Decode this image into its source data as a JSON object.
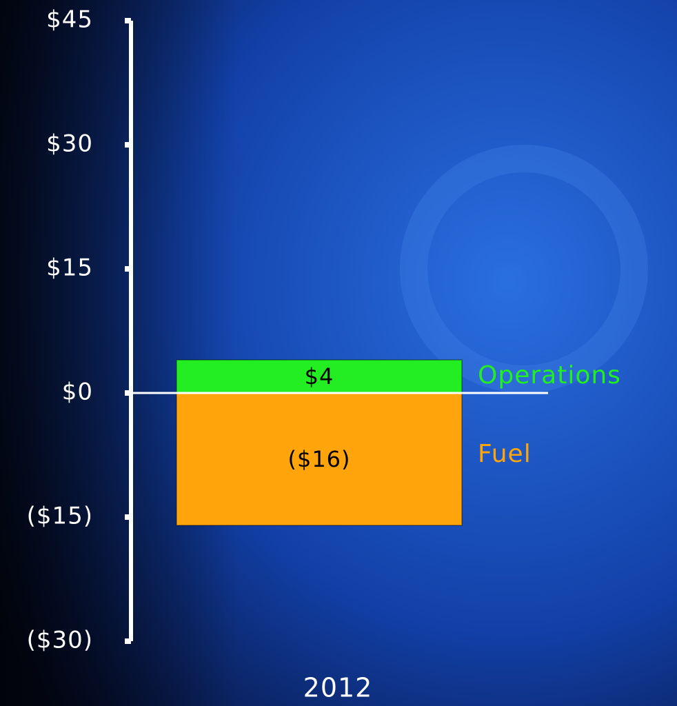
{
  "chart_data": {
    "type": "stacked_bar",
    "categories": [
      "2012"
    ],
    "series": [
      {
        "name": "Operations",
        "color": "#22ee22",
        "values": [
          4
        ],
        "value_labels": [
          "$4"
        ]
      },
      {
        "name": "Fuel",
        "color": "#ffa40a",
        "values": [
          -16
        ],
        "value_labels": [
          "($16)"
        ]
      }
    ],
    "ylim": [
      -30,
      45
    ],
    "yticks": [
      {
        "value": -30,
        "label": "($30)"
      },
      {
        "value": -15,
        "label": "($15)"
      },
      {
        "value": 0,
        "label": "$0"
      },
      {
        "value": 15,
        "label": "$15"
      },
      {
        "value": 30,
        "label": "$30"
      },
      {
        "value": 45,
        "label": "$45"
      }
    ]
  }
}
